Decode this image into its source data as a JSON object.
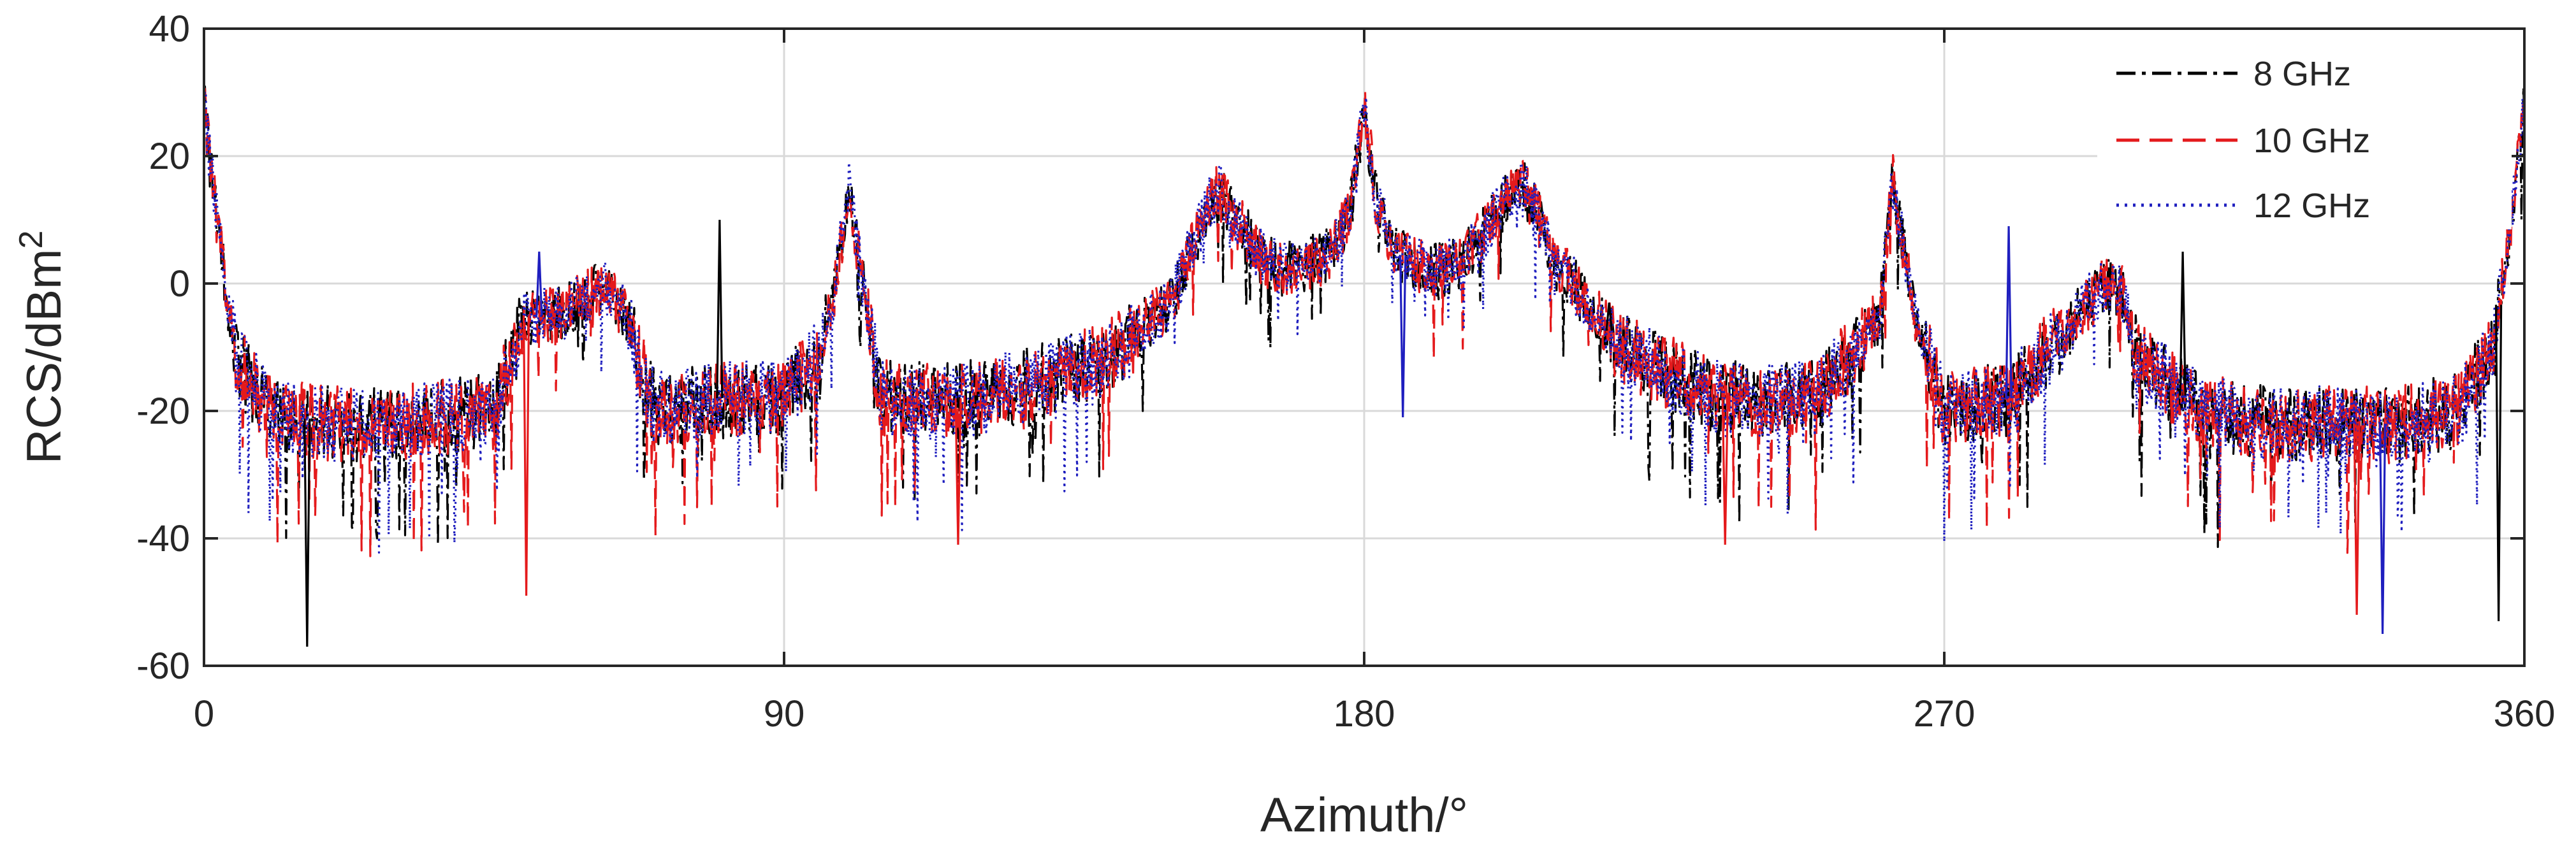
{
  "chart_data": {
    "type": "line",
    "xlabel": "Azimuth/°",
    "ylabel_main": "RCS/dBm",
    "ylabel_sup": "2",
    "xlim": [
      0,
      360
    ],
    "ylim": [
      -60,
      40
    ],
    "xticks": [
      0,
      90,
      180,
      270,
      360
    ],
    "yticks": [
      40,
      20,
      0,
      -20,
      -40,
      -60
    ],
    "grid": true,
    "legend_position": "top-right",
    "series": [
      {
        "name": "8 GHz",
        "color": "#000000",
        "style": "dash-dot"
      },
      {
        "name": "10 GHz",
        "color": "#e41a1c",
        "style": "dashed"
      },
      {
        "name": "12 GHz",
        "color": "#1f1fbf",
        "style": "dotted"
      }
    ],
    "envelope": {
      "x": [
        0,
        2,
        5,
        10,
        20,
        30,
        45,
        50,
        55,
        60,
        62,
        65,
        70,
        80,
        90,
        95,
        98,
        100,
        105,
        120,
        140,
        150,
        155,
        157,
        160,
        165,
        170,
        175,
        178,
        180,
        182,
        185,
        190,
        195,
        200,
        203,
        205,
        210,
        220,
        235,
        250,
        260,
        262,
        265,
        270,
        280,
        288,
        295,
        298,
        300,
        310,
        320,
        330,
        340,
        350,
        355,
        358,
        360
      ],
      "y": [
        28,
        10,
        -12,
        -20,
        -22,
        -22,
        -20,
        -5,
        -5,
        -2,
        0,
        -4,
        -20,
        -18,
        -18,
        -12,
        0,
        15,
        -18,
        -18,
        -12,
        -3,
        10,
        15,
        10,
        3,
        2,
        5,
        12,
        28,
        12,
        5,
        2,
        3,
        10,
        15,
        15,
        3,
        -10,
        -18,
        -18,
        -5,
        16,
        -3,
        -20,
        -18,
        -8,
        0,
        -2,
        -12,
        -20,
        -22,
        -22,
        -22,
        -20,
        -10,
        10,
        28
      ]
    },
    "spikes": [
      {
        "x": 16,
        "y": -57
      },
      {
        "x": 50,
        "y": -49
      },
      {
        "x": 52,
        "y": 5
      },
      {
        "x": 80,
        "y": 10
      },
      {
        "x": 117,
        "y": -41
      },
      {
        "x": 186,
        "y": -21
      },
      {
        "x": 218,
        "y": -3
      },
      {
        "x": 236,
        "y": -41
      },
      {
        "x": 280,
        "y": 9
      },
      {
        "x": 307,
        "y": 5
      },
      {
        "x": 334,
        "y": -52
      },
      {
        "x": 338,
        "y": -55
      },
      {
        "x": 356,
        "y": -53
      }
    ]
  }
}
